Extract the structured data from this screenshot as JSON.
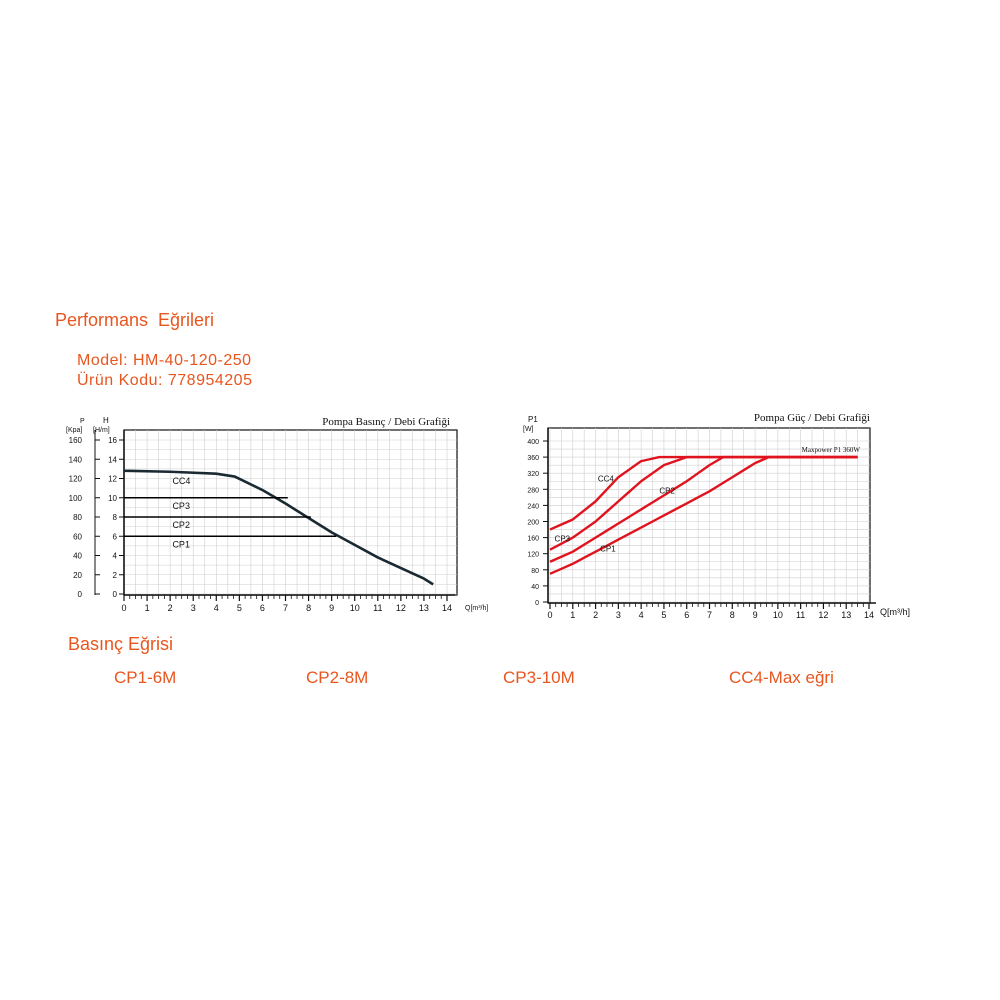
{
  "header": {
    "title": "Performans  Eğrileri",
    "model": "Model: HM-40-120-250",
    "code": "Ürün Kodu: 778954205"
  },
  "legend": {
    "title": "Basınç Eğrisi",
    "items": [
      "CP1-6M",
      "CP2-8M",
      "CP3-10M",
      "CC4-Max eğri"
    ]
  },
  "colors": {
    "accent": "#e8561f",
    "pressure_curve": "#1a2a33",
    "power_curve": "#e0141e"
  },
  "chart_data": [
    {
      "type": "line",
      "title": "Pompa Basınç / Debi Grafiği",
      "ylabel_left": "P [Kpa]",
      "ylabel_right": "H [H/m]",
      "xlabel": "Q[m³/h]",
      "xlim": [
        0,
        14
      ],
      "ylim": [
        0,
        16
      ],
      "x_ticks": [
        "0",
        "1",
        "2",
        "3",
        "4",
        "5",
        "6",
        "7",
        "8",
        "9",
        "10",
        "11",
        "12",
        "13",
        "14"
      ],
      "y_ticks_h": [
        "0",
        "2",
        "4",
        "6",
        "8",
        "10",
        "12",
        "14",
        "16"
      ],
      "y_ticks_p": [
        "0",
        "20",
        "40",
        "60",
        "80",
        "100",
        "120",
        "140",
        "160"
      ],
      "grid": true,
      "series": [
        {
          "name": "CC4",
          "x": [
            0,
            2,
            4,
            4.8,
            6,
            7,
            8,
            9,
            10,
            11,
            12,
            13,
            13.4
          ],
          "y": [
            12.8,
            12.7,
            12.5,
            12.2,
            10.8,
            9.4,
            7.9,
            6.4,
            5.1,
            3.8,
            2.7,
            1.6,
            1.0
          ]
        },
        {
          "name": "CP3",
          "x": [
            0,
            7.1
          ],
          "y": [
            10,
            10
          ]
        },
        {
          "name": "CP2",
          "x": [
            0,
            8.1
          ],
          "y": [
            8,
            8
          ]
        },
        {
          "name": "CP1",
          "x": [
            0,
            9.2
          ],
          "y": [
            6,
            6
          ]
        }
      ]
    },
    {
      "type": "line",
      "title": "Pompa Güç / Debi Grafiği",
      "ylabel": "P1 [W]",
      "xlabel": "Q[m³/h]",
      "xlim": [
        0,
        14
      ],
      "ylim": [
        0,
        400
      ],
      "x_ticks": [
        "0",
        "1",
        "2",
        "3",
        "4",
        "5",
        "6",
        "7",
        "8",
        "9",
        "10",
        "11",
        "12",
        "13",
        "14"
      ],
      "y_ticks": [
        "0",
        "40",
        "80",
        "120",
        "160",
        "200",
        "240",
        "280",
        "320",
        "360",
        "400"
      ],
      "grid": true,
      "annotation": "Maxpower P1  360W",
      "series": [
        {
          "name": "CC4",
          "x": [
            0,
            1,
            2,
            3,
            4,
            4.8,
            13.5
          ],
          "y": [
            180,
            205,
            250,
            310,
            350,
            360,
            360
          ]
        },
        {
          "name": "CP3",
          "x": [
            0,
            1,
            2,
            3,
            4,
            5,
            6,
            13.5
          ],
          "y": [
            130,
            160,
            200,
            250,
            300,
            340,
            360,
            360
          ]
        },
        {
          "name": "CP2",
          "x": [
            0,
            1,
            2,
            3,
            4,
            5,
            6,
            7,
            7.6,
            13.5
          ],
          "y": [
            100,
            125,
            160,
            195,
            230,
            265,
            300,
            340,
            360,
            360
          ]
        },
        {
          "name": "CP1",
          "x": [
            0,
            1,
            2,
            3,
            4,
            5,
            6,
            7,
            8,
            9,
            9.6,
            13.5
          ],
          "y": [
            70,
            95,
            125,
            155,
            185,
            215,
            245,
            275,
            310,
            345,
            360,
            360
          ]
        }
      ]
    }
  ]
}
